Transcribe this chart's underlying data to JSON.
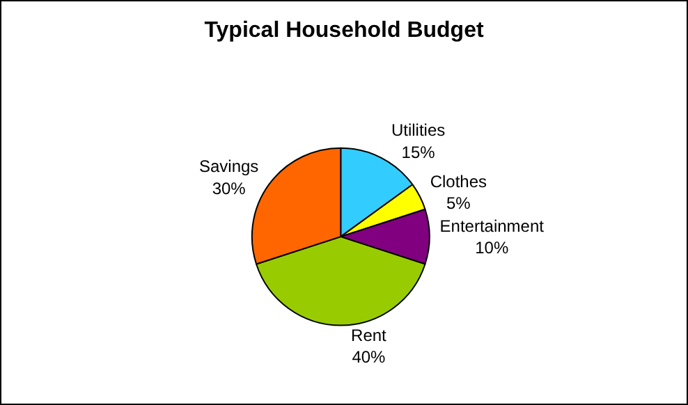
{
  "chart_data": {
    "type": "pie",
    "title": "Typical Household Budget",
    "categories": [
      "Utilities",
      "Clothes",
      "Entertainment",
      "Rent",
      "Savings"
    ],
    "values": [
      15,
      5,
      10,
      40,
      30
    ],
    "value_labels": [
      "15%",
      "5%",
      "10%",
      "40%",
      "30%"
    ],
    "colors": [
      "#33ccff",
      "#ffff00",
      "#800080",
      "#99cc00",
      "#ff6600"
    ],
    "legend": false
  }
}
